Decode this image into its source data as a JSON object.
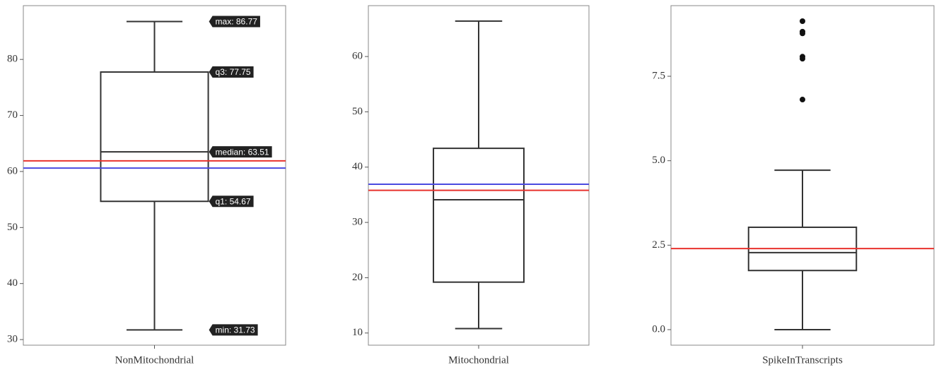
{
  "chart_data": [
    {
      "type": "box",
      "categories": [
        "NonMitochondrial"
      ],
      "values": [
        31.73,
        54.67,
        63.51,
        77.75,
        86.77
      ],
      "value_labels": [
        "min: 31.73",
        "q1: 54.67",
        "median: 63.51",
        "q3: 77.75",
        "max: 86.77"
      ],
      "color": "#333333",
      "ylim": [
        29.0,
        89.6
      ],
      "yticks": [
        30,
        40,
        50,
        60,
        70,
        80
      ],
      "lines": [
        {
          "value": 61.9,
          "color": "#e8322d"
        },
        {
          "value": 60.6,
          "color": "#4a4ae0"
        }
      ]
    },
    {
      "type": "box",
      "categories": [
        "Mitochondrial"
      ],
      "values": [
        10.8,
        19.2,
        34.1,
        43.4,
        66.4
      ],
      "color": "#333333",
      "ylim": [
        7.8,
        69.2
      ],
      "yticks": [
        10,
        20,
        30,
        40,
        50,
        60
      ],
      "lines": [
        {
          "value": 36.9,
          "color": "#4a4ae0"
        },
        {
          "value": 35.8,
          "color": "#e8322d"
        }
      ]
    },
    {
      "type": "box",
      "categories": [
        "SpikeInTranscripts"
      ],
      "values": [
        0,
        1.75,
        2.28,
        3.03,
        4.72
      ],
      "outliers": [
        9.13,
        8.82,
        8.77,
        8.08,
        8.02,
        6.81
      ],
      "color": "#333333",
      "ylim": [
        -0.46,
        9.59
      ],
      "yticks": [
        {
          "value": 0,
          "label": "0.0"
        },
        2.5,
        {
          "value": 5,
          "label": "5.0"
        },
        7.5
      ],
      "lines": [
        {
          "value": 2.4,
          "color": "#e8322d"
        }
      ]
    }
  ]
}
